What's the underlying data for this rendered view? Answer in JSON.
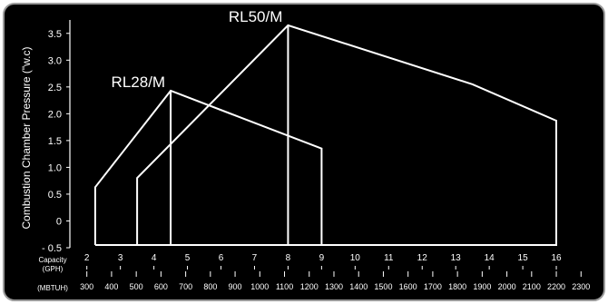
{
  "chart_data": {
    "type": "line",
    "ylabel": "Combustion Chamber Pressure (\"w.c)",
    "ylim": [
      -0.5,
      3.75
    ],
    "y_ticks": [
      {
        "value": 3.5,
        "label": "3.5"
      },
      {
        "value": 3.0,
        "label": "3.0"
      },
      {
        "value": 2.5,
        "label": "2.5"
      },
      {
        "value": 2.0,
        "label": "2.0"
      },
      {
        "value": 1.5,
        "label": "1.5"
      },
      {
        "value": 1.0,
        "label": "1.0"
      },
      {
        "value": 0.5,
        "label": "0.5"
      },
      {
        "value": 0,
        "label": "0"
      },
      {
        "value": -0.5,
        "label": "- 0.5"
      }
    ],
    "xlim_gph": [
      1.9,
      17.0
    ],
    "gph_axis": {
      "label_line1": "Capacity",
      "label_line2": "(GPH)",
      "ticks": [
        {
          "value": 2,
          "label": "2"
        },
        {
          "value": 3,
          "label": "3"
        },
        {
          "value": 4,
          "label": "4"
        },
        {
          "value": 5,
          "label": "5"
        },
        {
          "value": 6,
          "label": "6"
        },
        {
          "value": 7,
          "label": "7"
        },
        {
          "value": 8,
          "label": "8"
        },
        {
          "value": 9,
          "label": "9"
        },
        {
          "value": 10,
          "label": "10"
        },
        {
          "value": 11,
          "label": "11"
        },
        {
          "value": 12,
          "label": "12"
        },
        {
          "value": 13,
          "label": "13"
        },
        {
          "value": 14,
          "label": "14"
        },
        {
          "value": 15,
          "label": "15"
        },
        {
          "value": 16,
          "label": "16"
        }
      ]
    },
    "mbtuh_axis": {
      "label": "(MBTUH)",
      "ticks": [
        {
          "value": 300,
          "label": "300"
        },
        {
          "value": 400,
          "label": "400"
        },
        {
          "value": 500,
          "label": "500"
        },
        {
          "value": 600,
          "label": "600"
        },
        {
          "value": 700,
          "label": "700"
        },
        {
          "value": 800,
          "label": "800"
        },
        {
          "value": 900,
          "label": "900"
        },
        {
          "value": 1000,
          "label": "1000"
        },
        {
          "value": 1100,
          "label": "1100"
        },
        {
          "value": 1200,
          "label": "1200"
        },
        {
          "value": 1300,
          "label": "1300"
        },
        {
          "value": 1400,
          "label": "1400"
        },
        {
          "value": 1500,
          "label": "1500"
        },
        {
          "value": 1600,
          "label": "1600"
        },
        {
          "value": 1700,
          "label": "1700"
        },
        {
          "value": 1800,
          "label": "1800"
        },
        {
          "value": 1900,
          "label": "1900"
        },
        {
          "value": 2000,
          "label": "2000"
        },
        {
          "value": 2100,
          "label": "2100"
        },
        {
          "value": 2200,
          "label": "2200"
        },
        {
          "value": 2300,
          "label": "2300"
        }
      ]
    },
    "series": [
      {
        "name": "RL28/M",
        "points": [
          [
            2.25,
            -0.45
          ],
          [
            2.25,
            0.63
          ],
          [
            4.5,
            2.43
          ],
          [
            9.0,
            1.35
          ],
          [
            9.0,
            -0.45
          ],
          [
            2.25,
            -0.45
          ]
        ],
        "inner_line": [
          [
            4.5,
            2.43
          ],
          [
            4.5,
            -0.45
          ]
        ]
      },
      {
        "name": "RL50/M",
        "points": [
          [
            3.5,
            -0.45
          ],
          [
            3.5,
            0.8
          ],
          [
            8.0,
            3.65
          ],
          [
            13.5,
            2.55
          ],
          [
            16.0,
            1.87
          ],
          [
            16.0,
            -0.45
          ],
          [
            3.5,
            -0.45
          ]
        ],
        "inner_line": [
          [
            8.0,
            3.65
          ],
          [
            8.0,
            -0.45
          ]
        ]
      }
    ],
    "grid": false,
    "legend": "none",
    "colors": {
      "background": "#000000",
      "lines": "#ffffff",
      "axis": "#ffffff",
      "frame_border": "#9a9a9a"
    }
  }
}
